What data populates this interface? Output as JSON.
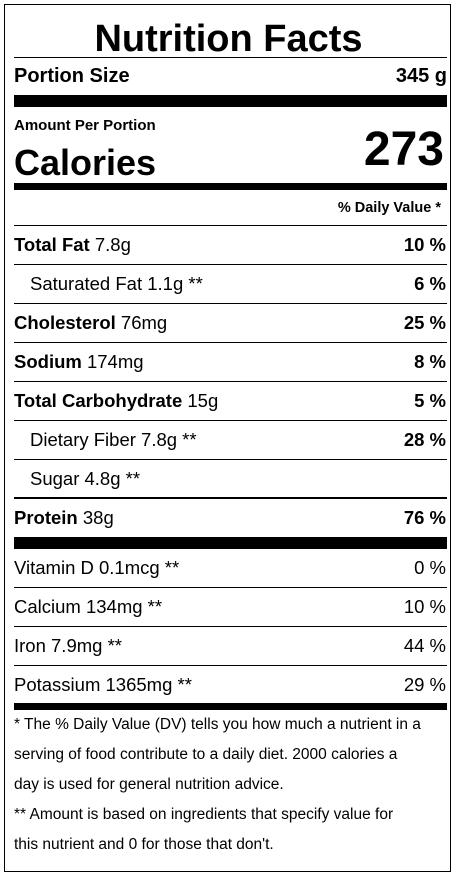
{
  "title": "Nutrition Facts",
  "portion": {
    "label": "Portion Size",
    "value": "345 g"
  },
  "calories": {
    "amount_label": "Amount Per Portion",
    "label": "Calories",
    "value": "273"
  },
  "dv_header": "% Daily Value *",
  "macros": [
    {
      "name": "Total Fat",
      "amount": " 7.8g",
      "dv": "10 %"
    },
    {
      "name": "Saturated Fat 1.1g **",
      "dv": "6 %"
    },
    {
      "name": "Cholesterol",
      "amount": " 76mg",
      "dv": "25 %"
    },
    {
      "name": "Sodium",
      "amount": " 174mg",
      "dv": "8 %"
    },
    {
      "name": "Total Carbohydrate",
      "amount": " 15g",
      "dv": "5 %"
    },
    {
      "name": "Dietary Fiber 7.8g **",
      "dv": "28 %"
    },
    {
      "name": "Sugar 4.8g **",
      "dv": ""
    },
    {
      "name": "Protein",
      "amount": " 38g",
      "dv": "76 %"
    }
  ],
  "micros": [
    {
      "name": "Vitamin D 0.1mcg **",
      "dv": "0 %"
    },
    {
      "name": "Calcium 134mg **",
      "dv": "10 %"
    },
    {
      "name": "Iron 7.9mg **",
      "dv": "44 %"
    },
    {
      "name": "Potassium 1365mg **",
      "dv": "29 %"
    }
  ],
  "footnotes": [
    "* The % Daily Value (DV) tells you how much a nutrient in a",
    "serving of food contribute to a daily diet. 2000 calories a",
    "day is used for general nutrition advice.",
    "** Amount is based on ingredients that specify value for",
    "this nutrient and 0 for those that don't."
  ]
}
